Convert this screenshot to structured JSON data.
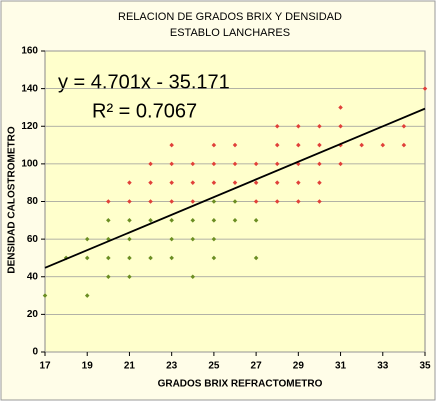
{
  "chart_data": {
    "type": "scatter",
    "title": [
      "RELACION DE GRADOS BRIX Y DENSIDAD",
      "ESTABLO LANCHARES"
    ],
    "x_label": "GRADOS BRIX REFRACTOMETRO",
    "y_label": "DENSIDAD  CALOSTROMETRO",
    "x": [
      17,
      18,
      19,
      19,
      19,
      20,
      20,
      20,
      20,
      20,
      21,
      21,
      21,
      21,
      21,
      21,
      22,
      22,
      22,
      22,
      22,
      23,
      23,
      23,
      23,
      23,
      23,
      23,
      24,
      24,
      24,
      24,
      24,
      24,
      25,
      25,
      25,
      25,
      25,
      25,
      25,
      26,
      26,
      26,
      26,
      26,
      27,
      27,
      27,
      27,
      27,
      28,
      28,
      28,
      28,
      28,
      29,
      29,
      29,
      29,
      29,
      30,
      30,
      30,
      30,
      30,
      31,
      31,
      31,
      31,
      32,
      33,
      34,
      34,
      35
    ],
    "y": [
      30,
      50,
      30,
      50,
      60,
      40,
      50,
      60,
      70,
      80,
      40,
      50,
      60,
      70,
      80,
      90,
      50,
      70,
      80,
      90,
      100,
      50,
      60,
      70,
      80,
      90,
      100,
      110,
      40,
      60,
      70,
      80,
      90,
      100,
      50,
      60,
      70,
      80,
      90,
      100,
      110,
      70,
      80,
      90,
      100,
      110,
      50,
      70,
      80,
      90,
      100,
      80,
      90,
      100,
      110,
      120,
      80,
      90,
      100,
      110,
      120,
      80,
      90,
      100,
      110,
      120,
      100,
      110,
      120,
      130,
      110,
      110,
      110,
      120,
      140
    ],
    "colors": [
      "#6b8e23",
      "#6b8e23",
      "#6b8e23",
      "#6b8e23",
      "#6b8e23",
      "#6b8e23",
      "#6b8e23",
      "#6b8e23",
      "#6b8e23",
      "#e0403a",
      "#6b8e23",
      "#6b8e23",
      "#6b8e23",
      "#6b8e23",
      "#e0403a",
      "#e0403a",
      "#6b8e23",
      "#6b8e23",
      "#e0403a",
      "#e0403a",
      "#e0403a",
      "#6b8e23",
      "#6b8e23",
      "#6b8e23",
      "#e0403a",
      "#e0403a",
      "#e0403a",
      "#e0403a",
      "#6b8e23",
      "#6b8e23",
      "#6b8e23",
      "#e0403a",
      "#e0403a",
      "#e0403a",
      "#6b8e23",
      "#6b8e23",
      "#6b8e23",
      "#6b8e23",
      "#e0403a",
      "#e0403a",
      "#e0403a",
      "#6b8e23",
      "#6b8e23",
      "#e0403a",
      "#e0403a",
      "#e0403a",
      "#6b8e23",
      "#6b8e23",
      "#e0403a",
      "#e0403a",
      "#e0403a",
      "#e0403a",
      "#e0403a",
      "#e0403a",
      "#e0403a",
      "#e0403a",
      "#e0403a",
      "#e0403a",
      "#e0403a",
      "#e0403a",
      "#e0403a",
      "#e0403a",
      "#e0403a",
      "#e0403a",
      "#e0403a",
      "#e0403a",
      "#e0403a",
      "#e0403a",
      "#e0403a",
      "#e0403a",
      "#e0403a",
      "#e0403a",
      "#e0403a",
      "#e0403a",
      "#e0403a"
    ],
    "trendline": {
      "slope": 4.701,
      "intercept": -35.171,
      "equation": "y = 4.701x - 35.171",
      "r2_label": "R² = 0.7067"
    },
    "xlim": [
      17,
      35
    ],
    "xticks": [
      17,
      19,
      21,
      23,
      25,
      27,
      29,
      31,
      33,
      35
    ],
    "ylim": [
      0,
      160
    ],
    "yticks": [
      0,
      20,
      40,
      60,
      80,
      100,
      120,
      140,
      160
    ],
    "grid": true
  }
}
